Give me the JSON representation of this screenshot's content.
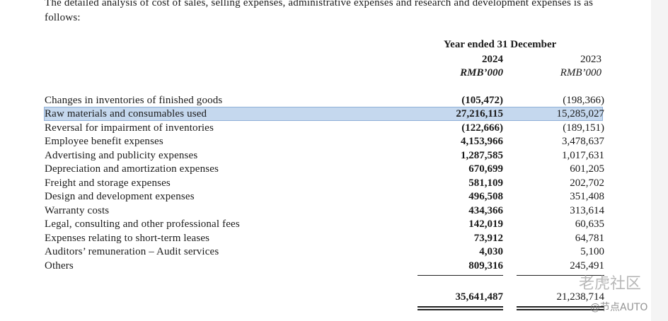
{
  "intro_text": "The detailed analysis of cost of sales, selling expenses, administrative expenses and research and development expenses is as follows:",
  "header": {
    "period": "Year ended 31 December",
    "col_2024": "2024",
    "col_2023": "2023",
    "unit_2024": "RMB’000",
    "unit_2023": "RMB’000"
  },
  "rows": [
    {
      "label": "Changes in inventories of finished goods",
      "v2024": "(105,472)",
      "v2023": "(198,366)"
    },
    {
      "label": "Raw materials and consumables used",
      "v2024": "27,216,115",
      "v2023": "15,285,027"
    },
    {
      "label": "Reversal for impairment of inventories",
      "v2024": "(122,666)",
      "v2023": "(189,151)"
    },
    {
      "label": "Employee benefit expenses",
      "v2024": "4,153,966",
      "v2023": "3,478,637"
    },
    {
      "label": "Advertising and publicity expenses",
      "v2024": "1,287,585",
      "v2023": "1,017,631"
    },
    {
      "label": "Depreciation and amortization expenses",
      "v2024": "670,699",
      "v2023": "601,205"
    },
    {
      "label": "Freight and storage expenses",
      "v2024": "581,109",
      "v2023": "202,702"
    },
    {
      "label": "Design and development expenses",
      "v2024": "496,508",
      "v2023": "351,408"
    },
    {
      "label": "Warranty costs",
      "v2024": "434,366",
      "v2023": "313,614"
    },
    {
      "label": "Legal, consulting and other professional fees",
      "v2024": "142,019",
      "v2023": "60,635"
    },
    {
      "label": "Expenses relating to short-term leases",
      "v2024": "73,912",
      "v2023": "64,781"
    },
    {
      "label": "Auditors’ remuneration – Audit services",
      "v2024": "4,030",
      "v2023": "5,100"
    },
    {
      "label": "Others",
      "v2024": "809,316",
      "v2023": "245,491"
    }
  ],
  "total": {
    "v2024": "35,641,487",
    "v2023": "21,238,714"
  },
  "watermark": {
    "line1": "老虎社区",
    "line2": "@节点AUTO"
  }
}
